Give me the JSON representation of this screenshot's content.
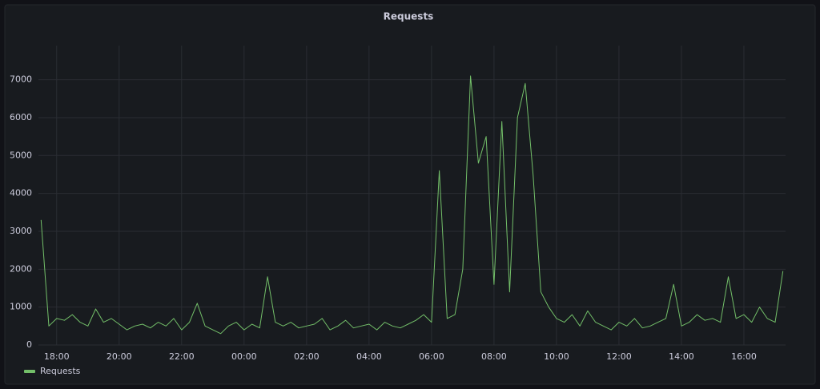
{
  "chart_data": {
    "type": "line",
    "title": "Requests",
    "x": [
      "17:30",
      "17:45",
      "18:00",
      "18:15",
      "18:30",
      "18:45",
      "19:00",
      "19:15",
      "19:30",
      "19:45",
      "20:00",
      "20:15",
      "20:30",
      "20:45",
      "21:00",
      "21:15",
      "21:30",
      "21:45",
      "22:00",
      "22:15",
      "22:30",
      "22:45",
      "23:00",
      "23:15",
      "23:30",
      "23:45",
      "00:00",
      "00:15",
      "00:30",
      "00:45",
      "01:00",
      "01:15",
      "01:30",
      "01:45",
      "02:00",
      "02:15",
      "02:30",
      "02:45",
      "03:00",
      "03:15",
      "03:30",
      "03:45",
      "04:00",
      "04:15",
      "04:30",
      "04:45",
      "05:00",
      "05:15",
      "05:30",
      "05:45",
      "06:00",
      "06:15",
      "06:30",
      "06:45",
      "07:00",
      "07:15",
      "07:30",
      "07:45",
      "08:00",
      "08:15",
      "08:30",
      "08:45",
      "09:00",
      "09:15",
      "09:30",
      "09:45",
      "10:00",
      "10:15",
      "10:30",
      "10:45",
      "11:00",
      "11:15",
      "11:30",
      "11:45",
      "12:00",
      "12:15",
      "12:30",
      "12:45",
      "13:00",
      "13:15",
      "13:30",
      "13:45",
      "14:00",
      "14:15",
      "14:30",
      "14:45",
      "15:00",
      "15:15",
      "15:30",
      "15:45",
      "16:00",
      "16:15",
      "16:30",
      "16:45",
      "17:00",
      "17:15"
    ],
    "series": [
      {
        "name": "Requests",
        "color": "#73bf69",
        "values": [
          3300,
          500,
          700,
          650,
          800,
          600,
          500,
          950,
          600,
          700,
          550,
          400,
          500,
          550,
          450,
          600,
          500,
          700,
          400,
          600,
          1100,
          500,
          400,
          300,
          500,
          600,
          400,
          550,
          450,
          1800,
          600,
          500,
          600,
          450,
          500,
          550,
          700,
          400,
          500,
          650,
          450,
          500,
          550,
          400,
          600,
          500,
          450,
          550,
          650,
          800,
          600,
          4600,
          700,
          800,
          2000,
          7100,
          4800,
          5500,
          1600,
          5900,
          1400,
          6000,
          6900,
          4500,
          1400,
          1000,
          700,
          600,
          800,
          500,
          900,
          600,
          500,
          400,
          600,
          500,
          700,
          450,
          500,
          600,
          700,
          1600,
          500,
          600,
          800,
          650,
          700,
          600,
          1800,
          700,
          800,
          600,
          1000,
          700,
          600,
          1950
        ]
      }
    ],
    "xlim": [
      "17:25",
      "17:20"
    ],
    "xticks": [
      "18:00",
      "20:00",
      "22:00",
      "00:00",
      "02:00",
      "04:00",
      "06:00",
      "08:00",
      "10:00",
      "12:00",
      "14:00",
      "16:00"
    ],
    "ylim": [
      0,
      7900
    ],
    "yticks": [
      0,
      1000,
      2000,
      3000,
      4000,
      5000,
      6000,
      7000
    ],
    "grid": true
  }
}
